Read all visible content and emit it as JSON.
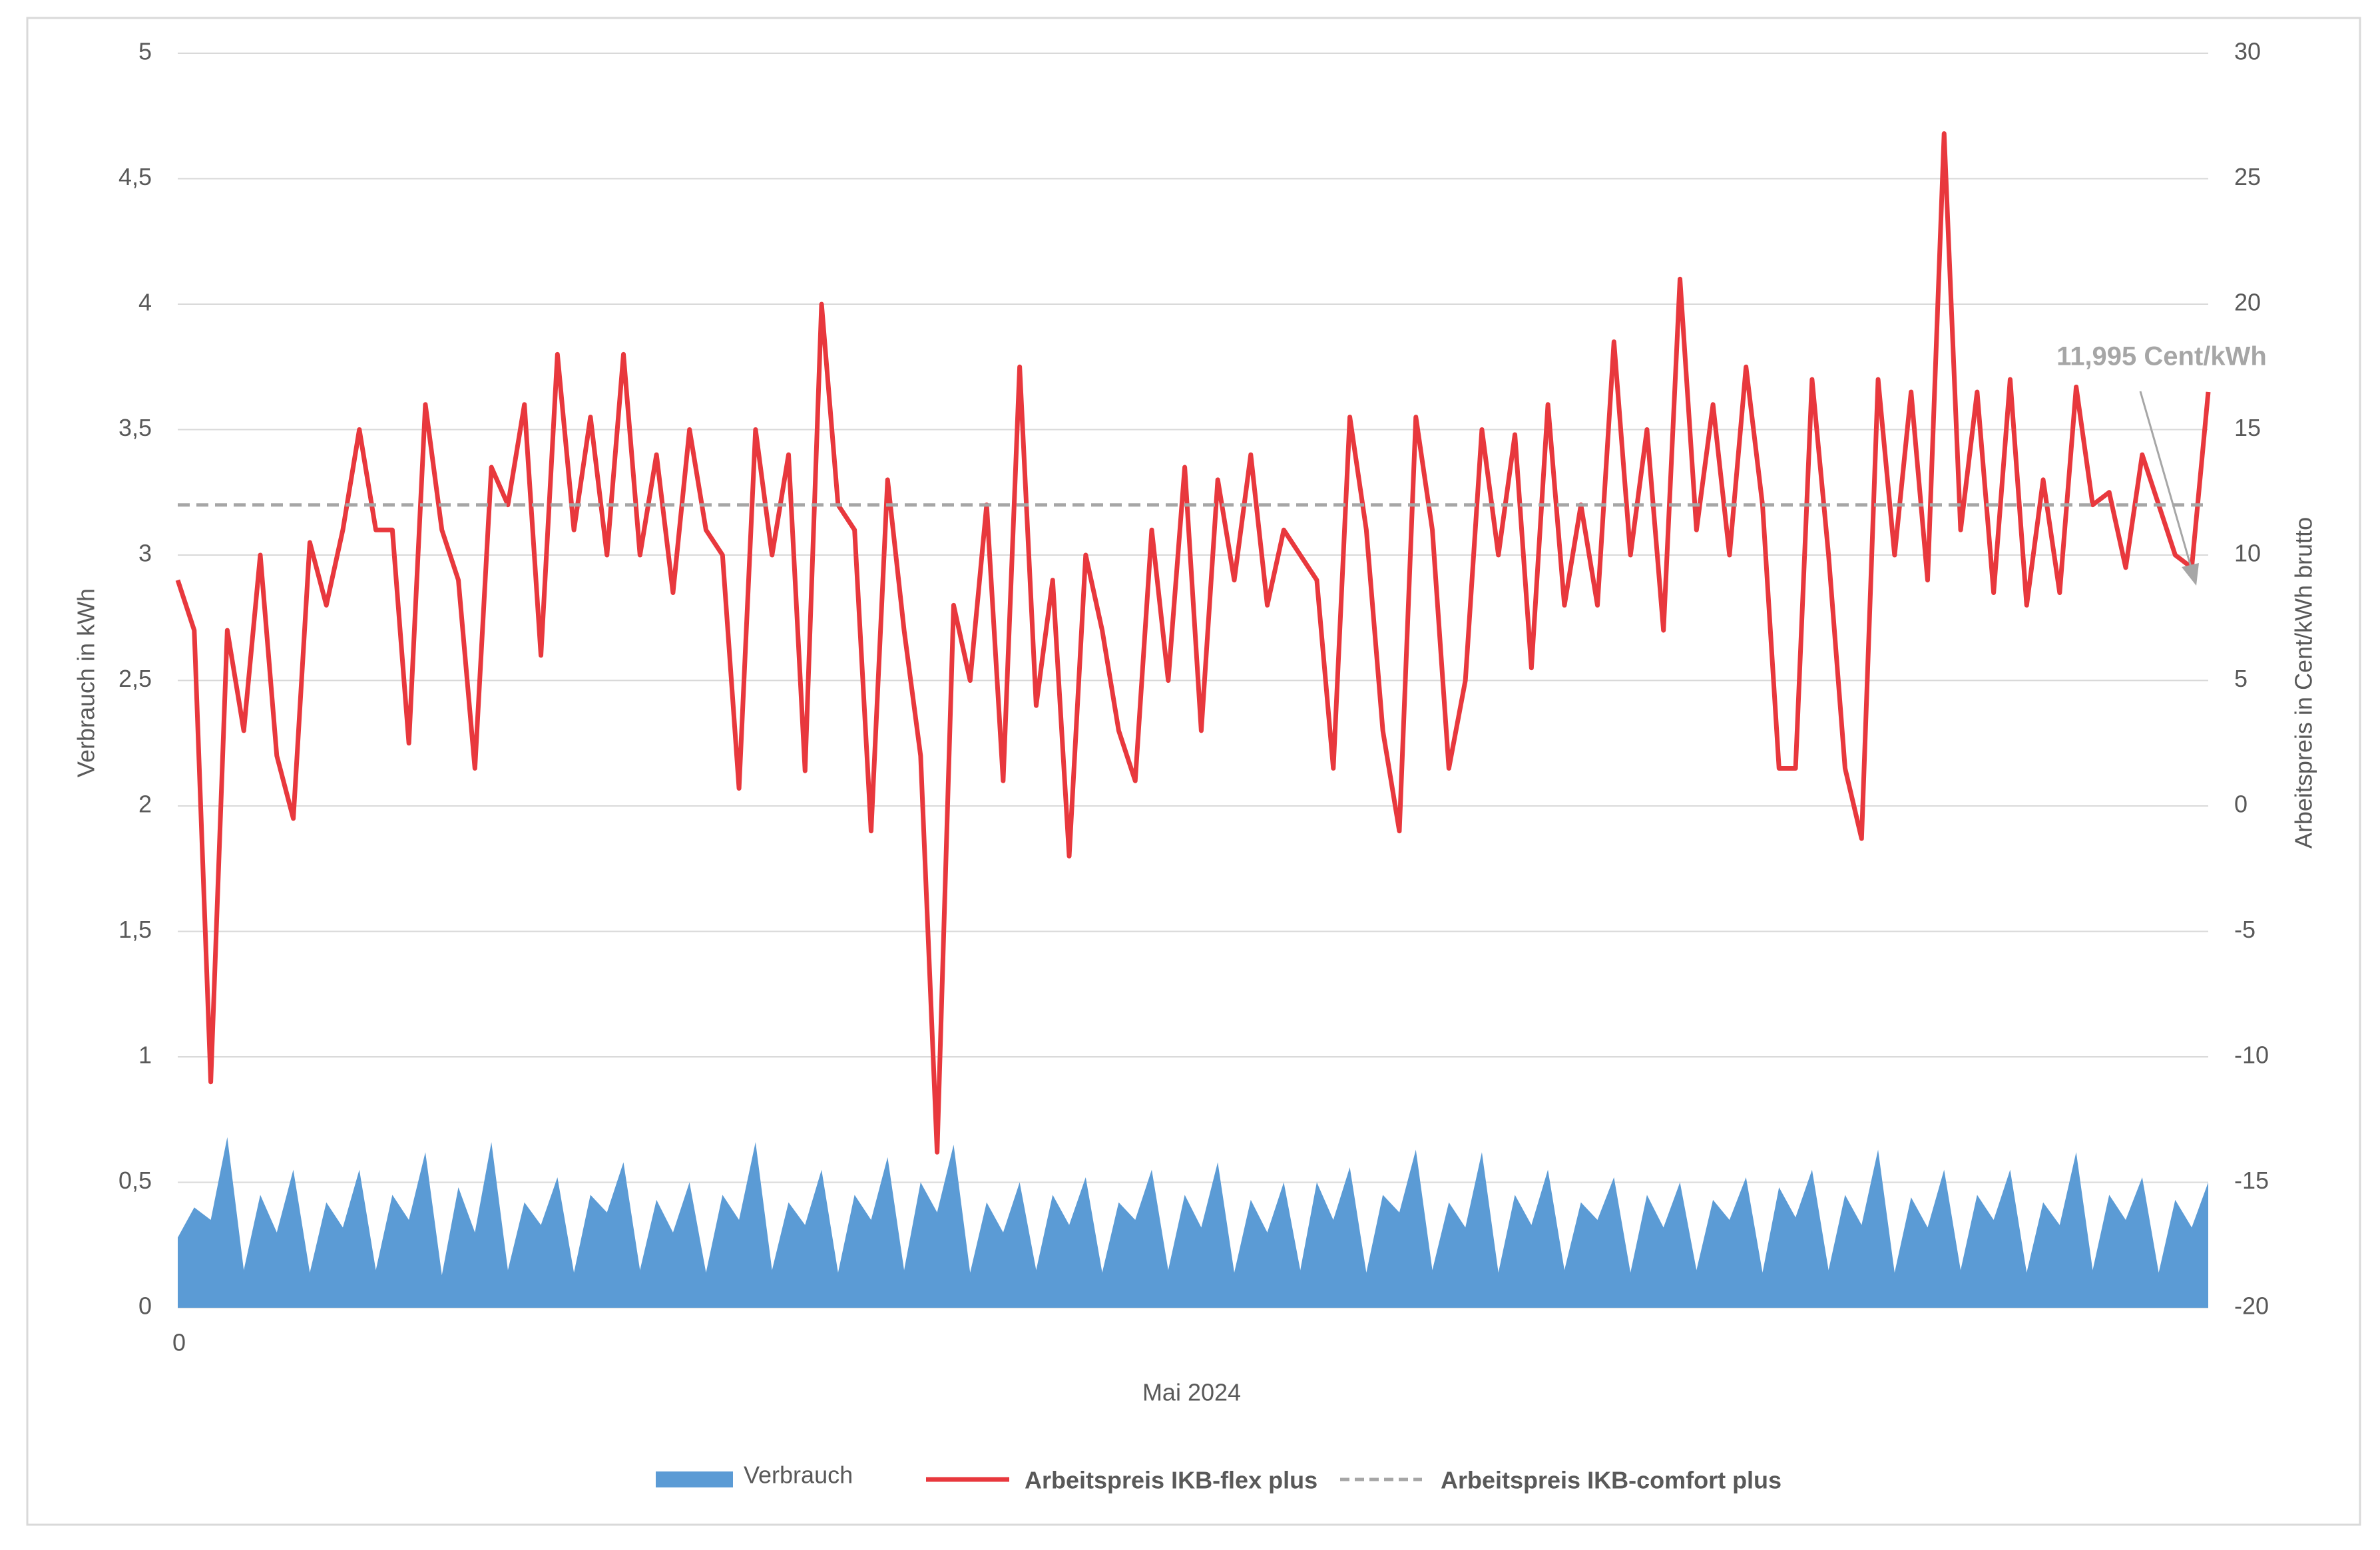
{
  "chart_data": {
    "type": "line",
    "x_label": "Mai 2024",
    "y_label": "Verbrauch in kWh",
    "y2_label": "Arbeitspreis in Cent/kWh brutto",
    "annotation": "11,995 Cent/kWh",
    "grid": true,
    "legend": "bottom",
    "ylim": [
      0,
      5
    ],
    "yticks": [
      0,
      {
        "value": 0.5,
        "label": "0,5"
      },
      1,
      {
        "value": 1.5,
        "label": "1,5"
      },
      2,
      {
        "value": 2.5,
        "label": "2,5"
      },
      3,
      {
        "value": 3.5,
        "label": "3,5"
      },
      4,
      {
        "value": 4.5,
        "label": "4,5"
      },
      5
    ],
    "y2lim": [
      -20,
      30
    ],
    "y2ticks": [
      -20,
      -15,
      -10,
      -5,
      0,
      5,
      10,
      15,
      20,
      25,
      30
    ],
    "categories": [
      "0",
      null,
      null,
      null,
      null,
      null,
      null,
      null,
      null,
      null,
      null,
      null,
      null,
      null,
      null,
      null,
      null,
      null,
      null,
      null,
      null,
      null,
      null,
      null,
      null,
      null,
      null,
      null,
      null,
      null,
      null,
      null,
      null,
      null,
      null,
      null,
      null,
      null,
      null,
      null,
      null,
      null,
      null,
      null,
      null,
      null,
      null,
      null,
      null,
      null,
      null,
      null,
      null,
      null,
      null,
      null,
      null,
      null,
      null,
      null,
      null,
      null,
      null,
      null,
      null,
      null,
      null,
      null,
      null,
      null,
      null,
      null,
      null,
      null,
      null,
      null,
      null,
      null,
      null,
      null,
      null,
      null,
      null,
      null,
      null,
      null,
      null,
      null,
      null,
      null,
      null,
      null,
      null,
      null,
      null,
      null,
      null,
      null,
      null,
      null,
      null,
      null,
      null,
      null,
      null,
      null,
      null,
      null,
      null,
      null,
      null,
      null,
      null,
      null,
      null,
      null,
      null,
      null,
      null,
      null,
      null,
      null,
      null,
      null
    ],
    "series": [
      {
        "name": "Verbrauch",
        "kind": "area",
        "axis": "y",
        "color": "#5b9bd5",
        "values": [
          0.28,
          0.4,
          0.35,
          0.68,
          0.15,
          0.45,
          0.3,
          0.55,
          0.14,
          0.42,
          0.32,
          0.55,
          0.15,
          0.45,
          0.35,
          0.62,
          0.13,
          0.48,
          0.3,
          0.66,
          0.15,
          0.42,
          0.33,
          0.52,
          0.14,
          0.45,
          0.38,
          0.58,
          0.15,
          0.43,
          0.3,
          0.5,
          0.14,
          0.45,
          0.35,
          0.66,
          0.15,
          0.42,
          0.33,
          0.55,
          0.14,
          0.45,
          0.35,
          0.6,
          0.15,
          0.5,
          0.38,
          0.65,
          0.14,
          0.42,
          0.3,
          0.5,
          0.15,
          0.45,
          0.33,
          0.52,
          0.14,
          0.42,
          0.35,
          0.55,
          0.15,
          0.45,
          0.32,
          0.58,
          0.14,
          0.43,
          0.3,
          0.5,
          0.15,
          0.5,
          0.35,
          0.56,
          0.14,
          0.45,
          0.38,
          0.63,
          0.15,
          0.42,
          0.32,
          0.62,
          0.14,
          0.45,
          0.33,
          0.55,
          0.15,
          0.42,
          0.35,
          0.52,
          0.14,
          0.45,
          0.32,
          0.5,
          0.15,
          0.43,
          0.35,
          0.52,
          0.14,
          0.48,
          0.36,
          0.55,
          0.15,
          0.45,
          0.33,
          0.63,
          0.14,
          0.44,
          0.32,
          0.55,
          0.15,
          0.45,
          0.35,
          0.55,
          0.14,
          0.42,
          0.33,
          0.62,
          0.15,
          0.45,
          0.35,
          0.52,
          0.14,
          0.43,
          0.32,
          0.5
        ]
      },
      {
        "name": "Arbeitspreis IKB-flex plus",
        "kind": "line",
        "axis": "y2",
        "color": "#e8383d",
        "values": [
          9,
          7,
          -11,
          7,
          3,
          10,
          2,
          -0.5,
          10.5,
          8,
          11,
          15,
          11,
          11,
          2.5,
          16,
          11,
          9,
          1.5,
          13.5,
          12,
          16,
          6,
          18,
          11,
          15.5,
          10,
          18,
          10,
          14,
          8.5,
          15,
          11,
          10,
          0.7,
          15,
          10,
          14,
          1.4,
          20,
          12,
          11,
          -1,
          13,
          7,
          2,
          -13.8,
          8,
          5,
          12,
          1,
          17.5,
          4,
          9,
          -2,
          10,
          7,
          3,
          1,
          11,
          5,
          13.5,
          3,
          13,
          9,
          14,
          8,
          11,
          10,
          9,
          1.5,
          15.5,
          11,
          3,
          -1,
          15.5,
          11,
          1.5,
          5,
          15,
          10,
          14.8,
          5.5,
          16,
          8,
          12,
          8,
          18.5,
          10,
          15,
          7,
          21,
          11,
          16,
          10,
          17.5,
          12,
          1.5,
          1.5,
          17,
          10,
          1.5,
          -1.3,
          17,
          10,
          16.5,
          9,
          26.8,
          11,
          16.5,
          8.5,
          17,
          8,
          13,
          8.5,
          16.7,
          12,
          12.5,
          9.5,
          14,
          12,
          10,
          9.5,
          16.5
        ]
      },
      {
        "name": "Arbeitspreis IKB-comfort plus",
        "kind": "hline",
        "axis": "y2",
        "color": "#a6a6a6",
        "value": 11.995
      }
    ]
  }
}
